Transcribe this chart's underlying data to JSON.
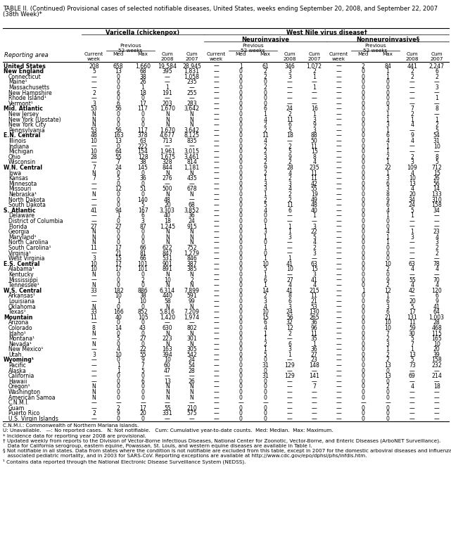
{
  "title_line1": "TABLE II. (Continued) Provisional cases of selected notifiable diseases, United States, weeks ending September 20, 2008, and September 22, 2007",
  "title_line2": "(38th Week)*",
  "col_group_header": "West Nile virus disease†",
  "subgroup1": "Varicella (chickenpox)",
  "subgroup2": "Neuroinvasive",
  "subgroup3": "Nonneuroinvasive§",
  "rows": [
    [
      "United States",
      "208",
      "658",
      "1,660",
      "19,584",
      "28,945",
      "—",
      "1",
      "61",
      "346",
      "1,072",
      "—",
      "2",
      "84",
      "441",
      "2,247"
    ],
    [
      "New England",
      "5",
      "13",
      "68",
      "395",
      "1,831",
      "—",
      "0",
      "2",
      "3",
      "2",
      "—",
      "0",
      "1",
      "2",
      "6"
    ],
    [
      "Connecticut",
      "—",
      "0",
      "38",
      "—",
      "1,058",
      "—",
      "0",
      "2",
      "3",
      "1",
      "—",
      "0",
      "1",
      "2",
      "2"
    ],
    [
      "Maine¹",
      "—",
      "0",
      "26",
      "—",
      "235",
      "—",
      "0",
      "0",
      "—",
      "—",
      "—",
      "0",
      "0",
      "—",
      "—"
    ],
    [
      "Massachusetts",
      "—",
      "0",
      "1",
      "1",
      "—",
      "—",
      "0",
      "2",
      "—",
      "1",
      "—",
      "0",
      "0",
      "—",
      "3"
    ],
    [
      "New Hampshire",
      "2",
      "6",
      "18",
      "191",
      "255",
      "—",
      "0",
      "0",
      "—",
      "—",
      "—",
      "0",
      "0",
      "—",
      "—"
    ],
    [
      "Rhode Island¹",
      "—",
      "0",
      "0",
      "—",
      "—",
      "—",
      "0",
      "0",
      "—",
      "—",
      "—",
      "0",
      "0",
      "—",
      "1"
    ],
    [
      "Vermont¹",
      "3",
      "6",
      "17",
      "203",
      "283",
      "—",
      "0",
      "0",
      "—",
      "—",
      "—",
      "0",
      "0",
      "—",
      "—"
    ],
    [
      "Mid. Atlantic",
      "53",
      "56",
      "117",
      "1,670",
      "3,642",
      "—",
      "0",
      "6",
      "24",
      "16",
      "—",
      "0",
      "3",
      "7",
      "8"
    ],
    [
      "New Jersey",
      "N",
      "0",
      "0",
      "N",
      "N",
      "—",
      "0",
      "1",
      "2",
      "1",
      "—",
      "0",
      "1",
      "2",
      "—"
    ],
    [
      "New York (Upstate)",
      "N",
      "0",
      "0",
      "N",
      "N",
      "—",
      "0",
      "4",
      "11",
      "3",
      "—",
      "0",
      "1",
      "1",
      "1"
    ],
    [
      "New York City",
      "N",
      "0",
      "0",
      "N",
      "N",
      "—",
      "0",
      "2",
      "6",
      "9",
      "—",
      "0",
      "3",
      "4",
      "2"
    ],
    [
      "Pennsylvania",
      "53",
      "56",
      "117",
      "1,670",
      "3,642",
      "—",
      "0",
      "2",
      "5",
      "3",
      "—",
      "0",
      "1",
      "—",
      "5"
    ],
    [
      "E.N. Central",
      "48",
      "163",
      "378",
      "4,677",
      "8,125",
      "—",
      "0",
      "11",
      "18",
      "88",
      "—",
      "0",
      "6",
      "9",
      "54"
    ],
    [
      "Illinois",
      "10",
      "13",
      "63",
      "713",
      "835",
      "—",
      "0",
      "4",
      "—",
      "50",
      "—",
      "0",
      "4",
      "4",
      "31"
    ],
    [
      "Indiana",
      "—",
      "0",
      "222",
      "—",
      "—",
      "—",
      "0",
      "2",
      "2",
      "11",
      "—",
      "0",
      "1",
      "—",
      "10"
    ],
    [
      "Michigan",
      "10",
      "64",
      "154",
      "1,961",
      "3,015",
      "—",
      "0",
      "2",
      "5",
      "15",
      "—",
      "0",
      "1",
      "—",
      "—"
    ],
    [
      "Ohio",
      "28",
      "55",
      "128",
      "1,675",
      "3,461",
      "—",
      "0",
      "3",
      "9",
      "8",
      "—",
      "0",
      "2",
      "2",
      "8"
    ],
    [
      "Wisconsin",
      "—",
      "7",
      "38",
      "328",
      "814",
      "—",
      "0",
      "2",
      "2",
      "4",
      "—",
      "0",
      "1",
      "3",
      "5"
    ],
    [
      "W.N. Central",
      "7",
      "24",
      "145",
      "844",
      "1,181",
      "—",
      "0",
      "9",
      "28",
      "235",
      "—",
      "0",
      "22",
      "109",
      "712"
    ],
    [
      "Iowa",
      "N",
      "0",
      "0",
      "N",
      "N",
      "—",
      "0",
      "2",
      "4",
      "11",
      "—",
      "0",
      "1",
      "4",
      "15"
    ],
    [
      "Kansas",
      "7",
      "5",
      "36",
      "276",
      "435",
      "—",
      "0",
      "1",
      "2",
      "11",
      "—",
      "0",
      "3",
      "10",
      "26"
    ],
    [
      "Minnesota",
      "—",
      "0",
      "0",
      "—",
      "—",
      "—",
      "0",
      "3",
      "3",
      "42",
      "—",
      "0",
      "6",
      "13",
      "56"
    ],
    [
      "Missouri",
      "—",
      "12",
      "51",
      "500",
      "678",
      "—",
      "0",
      "3",
      "4",
      "55",
      "—",
      "0",
      "3",
      "4",
      "14"
    ],
    [
      "Nebraska¹",
      "N",
      "0",
      "0",
      "N",
      "N",
      "—",
      "0",
      "1",
      "2",
      "19",
      "—",
      "0",
      "8",
      "20",
      "133"
    ],
    [
      "North Dakota",
      "—",
      "0",
      "140",
      "48",
      "—",
      "—",
      "0",
      "2",
      "2",
      "49",
      "—",
      "0",
      "9",
      "34",
      "310"
    ],
    [
      "South Dakota",
      "—",
      "0",
      "5",
      "20",
      "68",
      "—",
      "0",
      "5",
      "11",
      "48",
      "—",
      "0",
      "6",
      "24",
      "158"
    ],
    [
      "S. Atlantic",
      "41",
      "94",
      "167",
      "3,303",
      "3,852",
      "—",
      "0",
      "4",
      "6",
      "40",
      "—",
      "0",
      "4",
      "5",
      "34"
    ],
    [
      "Delaware",
      "—",
      "1",
      "6",
      "40",
      "36",
      "—",
      "0",
      "0",
      "—",
      "1",
      "—",
      "0",
      "1",
      "1",
      "—"
    ],
    [
      "District of Columbia",
      "—",
      "0",
      "3",
      "18",
      "24",
      "—",
      "0",
      "0",
      "—",
      "—",
      "—",
      "0",
      "0",
      "—",
      "—"
    ],
    [
      "Florida",
      "27",
      "27",
      "87",
      "1,245",
      "915",
      "—",
      "0",
      "1",
      "1",
      "3",
      "—",
      "0",
      "0",
      "—",
      "—"
    ],
    [
      "Georgia",
      "N",
      "0",
      "0",
      "N",
      "N",
      "—",
      "0",
      "3",
      "1",
      "22",
      "—",
      "0",
      "4",
      "1",
      "23"
    ],
    [
      "Maryland¹",
      "N",
      "0",
      "0",
      "N",
      "N",
      "—",
      "0",
      "1",
      "3",
      "5",
      "—",
      "0",
      "1",
      "3",
      "4"
    ],
    [
      "North Carolina",
      "N",
      "0",
      "0",
      "N",
      "N",
      "—",
      "0",
      "0",
      "—",
      "4",
      "—",
      "0",
      "1",
      "—",
      "3"
    ],
    [
      "South Carolina¹",
      "11",
      "17",
      "66",
      "622",
      "752",
      "—",
      "0",
      "1",
      "—",
      "2",
      "—",
      "0",
      "0",
      "—",
      "2"
    ],
    [
      "Virginia¹",
      "—",
      "21",
      "81",
      "847",
      "1,279",
      "—",
      "0",
      "0",
      "—",
      "3",
      "—",
      "0",
      "0",
      "—",
      "2"
    ],
    [
      "West Virginia",
      "3",
      "15",
      "66",
      "531",
      "846",
      "—",
      "0",
      "1",
      "1",
      "—",
      "—",
      "0",
      "0",
      "—",
      "—"
    ],
    [
      "E.S. Central",
      "10",
      "17",
      "101",
      "901",
      "387",
      "—",
      "0",
      "10",
      "41",
      "63",
      "—",
      "0",
      "10",
      "63",
      "78"
    ],
    [
      "Alabama¹",
      "10",
      "17",
      "101",
      "891",
      "385",
      "—",
      "0",
      "5",
      "10",
      "15",
      "—",
      "0",
      "2",
      "4",
      "4"
    ],
    [
      "Kentucky",
      "N",
      "0",
      "0",
      "N",
      "N",
      "—",
      "0",
      "1",
      "—",
      "3",
      "—",
      "0",
      "0",
      "—",
      "—"
    ],
    [
      "Mississippi",
      "—",
      "0",
      "2",
      "10",
      "2",
      "—",
      "0",
      "6",
      "27",
      "41",
      "—",
      "0",
      "9",
      "55",
      "70"
    ],
    [
      "Tennessee¹",
      "N",
      "0",
      "0",
      "N",
      "N",
      "—",
      "0",
      "1",
      "4",
      "4",
      "—",
      "0",
      "2",
      "4",
      "4"
    ],
    [
      "W.S. Central",
      "33",
      "182",
      "886",
      "6,314",
      "7,899",
      "—",
      "0",
      "14",
      "41",
      "215",
      "—",
      "1",
      "12",
      "42",
      "120"
    ],
    [
      "Arkansas¹",
      "—",
      "10",
      "38",
      "440",
      "591",
      "—",
      "0",
      "2",
      "8",
      "11",
      "—",
      "0",
      "1",
      "—",
      "6"
    ],
    [
      "Louisiana",
      "—",
      "1",
      "10",
      "58",
      "99",
      "—",
      "0",
      "3",
      "6",
      "21",
      "—",
      "0",
      "6",
      "20",
      "9"
    ],
    [
      "Oklahoma",
      "N",
      "0",
      "0",
      "N",
      "N",
      "—",
      "0",
      "4",
      "3",
      "53",
      "—",
      "0",
      "3",
      "5",
      "41"
    ],
    [
      "Texas¹",
      "33",
      "166",
      "852",
      "5,816",
      "7,209",
      "—",
      "0",
      "10",
      "24",
      "130",
      "—",
      "0",
      "6",
      "17",
      "64"
    ],
    [
      "Mountain",
      "11",
      "40",
      "105",
      "1,420",
      "1,974",
      "—",
      "0",
      "15",
      "56",
      "265",
      "—",
      "0",
      "21",
      "131",
      "1,003"
    ],
    [
      "Arizona",
      "—",
      "0",
      "0",
      "—",
      "—",
      "—",
      "0",
      "6",
      "32",
      "36",
      "—",
      "0",
      "10",
      "11",
      "28"
    ],
    [
      "Colorado",
      "8",
      "14",
      "43",
      "630",
      "802",
      "—",
      "0",
      "4",
      "12",
      "96",
      "—",
      "0",
      "10",
      "59",
      "468"
    ],
    [
      "Idaho¹",
      "N",
      "0",
      "0",
      "N",
      "N",
      "—",
      "0",
      "1",
      "2",
      "11",
      "—",
      "0",
      "7",
      "30",
      "115"
    ],
    [
      "Montana¹",
      "—",
      "5",
      "27",
      "223",
      "301",
      "—",
      "0",
      "1",
      "—",
      "35",
      "—",
      "0",
      "2",
      "5",
      "165"
    ],
    [
      "Nevada¹",
      "N",
      "0",
      "0",
      "N",
      "N",
      "—",
      "0",
      "2",
      "6",
      "1",
      "—",
      "0",
      "3",
      "7",
      "10"
    ],
    [
      "New Mexico¹",
      "—",
      "4",
      "22",
      "163",
      "305",
      "—",
      "0",
      "1",
      "3",
      "36",
      "—",
      "0",
      "1",
      "1",
      "20"
    ],
    [
      "Utah",
      "3",
      "10",
      "55",
      "394",
      "542",
      "—",
      "0",
      "5",
      "1",
      "27",
      "—",
      "0",
      "2",
      "13",
      "39"
    ],
    [
      "Wyoming¹",
      "—",
      "0",
      "9",
      "10",
      "24",
      "—",
      "0",
      "0",
      "—",
      "23",
      "—",
      "0",
      "2",
      "5",
      "158"
    ],
    [
      "Pacific",
      "—",
      "1",
      "7",
      "60",
      "54",
      "—",
      "0",
      "31",
      "129",
      "148",
      "—",
      "0",
      "13",
      "73",
      "232"
    ],
    [
      "Alaska",
      "—",
      "1",
      "5",
      "47",
      "28",
      "—",
      "0",
      "0",
      "—",
      "—",
      "—",
      "0",
      "0",
      "—",
      "—"
    ],
    [
      "California",
      "—",
      "0",
      "0",
      "—",
      "—",
      "—",
      "0",
      "31",
      "129",
      "141",
      "—",
      "0",
      "13",
      "69",
      "214"
    ],
    [
      "Hawaii",
      "—",
      "0",
      "6",
      "13",
      "26",
      "—",
      "0",
      "0",
      "—",
      "—",
      "—",
      "0",
      "0",
      "—",
      "—"
    ],
    [
      "Oregon¹",
      "N",
      "0",
      "0",
      "N",
      "N",
      "—",
      "0",
      "0",
      "—",
      "7",
      "—",
      "0",
      "2",
      "4",
      "18"
    ],
    [
      "Washington",
      "N",
      "0",
      "0",
      "N",
      "N",
      "—",
      "0",
      "0",
      "—",
      "—",
      "—",
      "0",
      "0",
      "—",
      "—"
    ],
    [
      "American Samoa",
      "N",
      "0",
      "0",
      "N",
      "N",
      "—",
      "0",
      "0",
      "—",
      "—",
      "—",
      "0",
      "0",
      "—",
      "—"
    ],
    [
      "C.N.M.I.",
      "—",
      "—",
      "—",
      "—",
      "—",
      "—",
      "—",
      "—",
      "—",
      "—",
      "—",
      "—",
      "—",
      "—",
      "—"
    ],
    [
      "Guam",
      "—",
      "2",
      "17",
      "55",
      "210",
      "—",
      "0",
      "0",
      "—",
      "—",
      "—",
      "0",
      "0",
      "—",
      "—"
    ],
    [
      "Puerto Rico",
      "2",
      "9",
      "20",
      "331",
      "575",
      "—",
      "0",
      "0",
      "—",
      "—",
      "—",
      "0",
      "0",
      "—",
      "—"
    ],
    [
      "U.S. Virgin Islands",
      "—",
      "0",
      "0",
      "—",
      "—",
      "—",
      "0",
      "0",
      "—",
      "—",
      "—",
      "0",
      "0",
      "—",
      "—"
    ]
  ],
  "bold_rows": [
    0,
    1,
    8,
    13,
    19,
    27,
    37,
    42,
    47,
    55
  ],
  "footnotes": [
    "C.N.M.I.: Commonwealth of Northern Mariana Islands.",
    "U: Unavailable.   —: No reported cases.   N: Not notifiable.   Cum: Cumulative year-to-date counts.  Med: Median.  Max: Maximum.",
    "* Incidence data for reporting year 2008 are provisional.",
    "† Updated weekly from reports to the Division of Vector-Borne Infectious Diseases, National Center for Zoonotic, Vector-Borne, and Enteric Diseases (ArboNET Surveillance).",
    "   Data for California serogroup, eastern equine, Powassan, St. Louis, and western equine diseases are available in Table I.",
    "§ Not notifiable in all states. Data from states where the condition is not notifiable are excluded from this table, except in 2007 for the domestic arboviral diseases and influenza-",
    "   associated pediatric mortality, and in 2003 for SARS-CoV. Reporting exceptions are available at http://www.cdc.gov/epo/dphsi/phs/infdis.htm.",
    "¹ Contains data reported through the National Electronic Disease Surveillance System (NEDSS)."
  ]
}
